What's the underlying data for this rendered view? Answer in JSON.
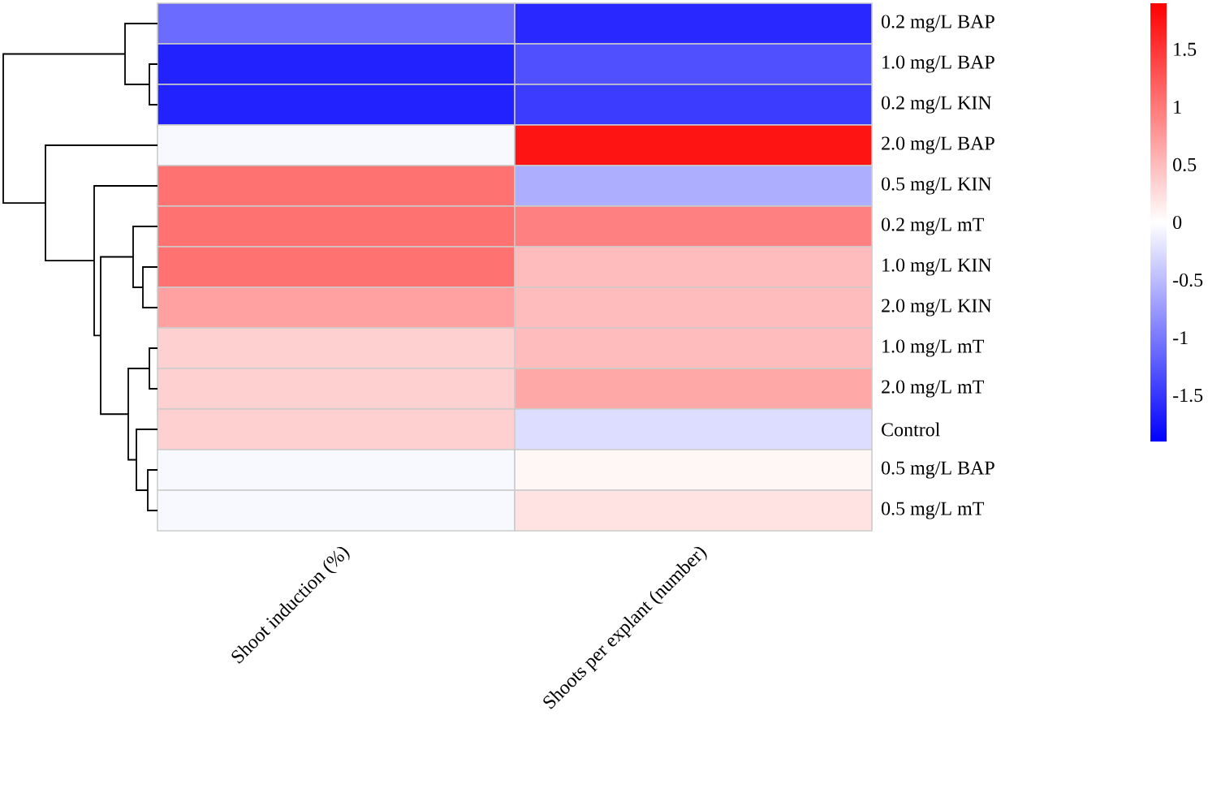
{
  "chart_data": {
    "type": "heatmap",
    "categories": [
      "Shoot induction (%)",
      "Shoots per explant (number)"
    ],
    "y_categories": [
      "0.2 mg/L BAP",
      "1.0 mg/L BAP",
      "0.2 mg/L KIN",
      "2.0 mg/L BAP",
      "0.5 mg/L KIN",
      "0.2 mg/L mT",
      "1.0 mg/L KIN",
      "2.0 mg/L KIN",
      "1.0 mg/L mT",
      "2.0 mg/L mT",
      "Control",
      "0.5 mg/L BAP",
      "0.5 mg/L mT"
    ],
    "cells": [
      [
        -1.1,
        -1.6
      ],
      [
        -1.65,
        -1.3
      ],
      [
        -1.65,
        -1.45
      ],
      [
        -0.05,
        1.75
      ],
      [
        1.05,
        -0.6
      ],
      [
        1.05,
        0.95
      ],
      [
        1.05,
        0.5
      ],
      [
        0.7,
        0.5
      ],
      [
        0.35,
        0.5
      ],
      [
        0.35,
        0.65
      ],
      [
        0.35,
        -0.25
      ],
      [
        -0.05,
        0.07
      ],
      [
        -0.05,
        0.22
      ]
    ],
    "clim": [
      -1.9,
      1.9
    ],
    "cticks": [
      -1.5,
      -1,
      -0.5,
      0,
      0.5,
      1,
      1.5
    ]
  }
}
